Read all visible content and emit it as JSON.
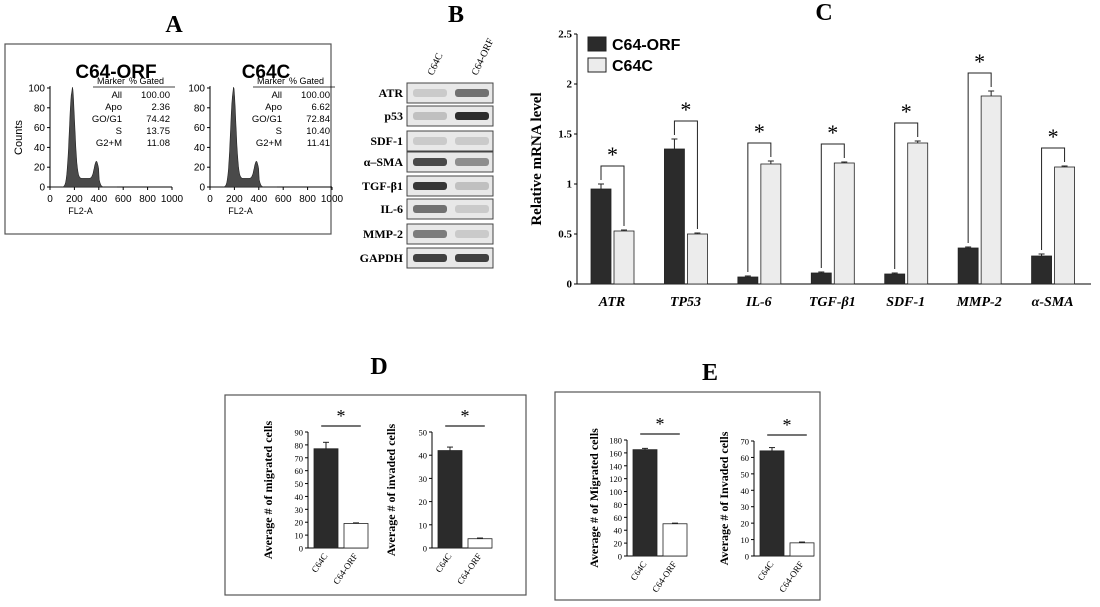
{
  "panels": {
    "A": "A",
    "B": "B",
    "C": "C",
    "D": "D",
    "E": "E"
  },
  "colors": {
    "dark": "#2b2b2b",
    "light": "#ececec",
    "white": "#ffffff",
    "line": "#222222",
    "band": "#3a3a3a"
  },
  "flow": [
    {
      "title": "C64-ORF",
      "ylabel": "Counts",
      "xlabel": "FL2-A",
      "yticks": [
        "0",
        "20",
        "40",
        "60",
        "80",
        "100"
      ],
      "xticks": [
        "0",
        "200",
        "400",
        "600",
        "800",
        "1000"
      ],
      "legend_header": [
        "Marker",
        "% Gated"
      ],
      "rows": [
        [
          "All",
          "100.00"
        ],
        [
          "Apo",
          "2.36"
        ],
        [
          "GO/G1",
          "74.42"
        ],
        [
          "S",
          "13.75"
        ],
        [
          "G2+M",
          "11.08"
        ]
      ]
    },
    {
      "title": "C64C",
      "ylabel": "",
      "xlabel": "FL2-A",
      "yticks": [
        "0",
        "20",
        "40",
        "60",
        "80",
        "100"
      ],
      "xticks": [
        "0",
        "200",
        "400",
        "600",
        "800",
        "1000"
      ],
      "legend_header": [
        "Marker",
        "% Gated"
      ],
      "rows": [
        [
          "All",
          "100.00"
        ],
        [
          "Apo",
          "6.62"
        ],
        [
          "GO/G1",
          "72.84"
        ],
        [
          "S",
          "10.40"
        ],
        [
          "G2+M",
          "11.41"
        ]
      ]
    }
  ],
  "western": {
    "lanes": [
      "C64C",
      "C64-ORF"
    ],
    "proteins": [
      "ATR",
      "p53",
      "SDF-1",
      "α–SMA",
      "TGF-β1",
      "IL-6",
      "MMP-2",
      "GAPDH"
    ],
    "intensity": [
      [
        0.15,
        0.6
      ],
      [
        0.2,
        0.95
      ],
      [
        0.15,
        0.15
      ],
      [
        0.8,
        0.45
      ],
      [
        0.9,
        0.2
      ],
      [
        0.6,
        0.15
      ],
      [
        0.55,
        0.15
      ],
      [
        0.85,
        0.85
      ]
    ]
  },
  "chart_data": [
    {
      "type": "bar",
      "panel": "C",
      "title": "",
      "xlabel": "",
      "ylabel": "Relative mRNA level",
      "categories": [
        "ATR",
        "TP53",
        "IL-6",
        "TGF-β1",
        "SDF-1",
        "MMP-2",
        "α-SMA"
      ],
      "series": [
        {
          "name": "C64-ORF",
          "values": [
            0.95,
            1.35,
            0.07,
            0.11,
            0.1,
            0.36,
            0.28
          ],
          "errors": [
            0.05,
            0.1,
            0.01,
            0.01,
            0.01,
            0.01,
            0.02
          ]
        },
        {
          "name": "C64C",
          "values": [
            0.53,
            0.5,
            1.2,
            1.21,
            1.41,
            1.88,
            1.17
          ],
          "errors": [
            0.01,
            0.01,
            0.03,
            0.01,
            0.02,
            0.05,
            0.01
          ]
        }
      ],
      "ylim": [
        0,
        2.5
      ],
      "yticks": [
        "0",
        "0.5",
        "1",
        "1.5",
        "2",
        "2.5"
      ],
      "significance": "*",
      "legend": "top-left"
    },
    {
      "type": "bar",
      "panel": "D",
      "ylabel": "Average # of migrated cells",
      "categories": [
        "C64C",
        "C64-ORF"
      ],
      "values": [
        77,
        19
      ],
      "errors": [
        5,
        0.5
      ],
      "ylim": [
        0,
        90
      ],
      "yticks": [
        "0",
        "10",
        "20",
        "30",
        "40",
        "50",
        "60",
        "70",
        "80",
        "90"
      ],
      "significance": "*"
    },
    {
      "type": "bar",
      "panel": "D",
      "ylabel": "Average # of invaded cells",
      "categories": [
        "C64C",
        "C64-ORF"
      ],
      "values": [
        42,
        4
      ],
      "errors": [
        1.5,
        0.3
      ],
      "ylim": [
        0,
        50
      ],
      "yticks": [
        "0",
        "10",
        "20",
        "30",
        "40",
        "50"
      ],
      "significance": "*"
    },
    {
      "type": "bar",
      "panel": "E",
      "ylabel": "Average # of Migrated cells",
      "categories": [
        "C64C",
        "C64-ORF"
      ],
      "values": [
        165,
        50
      ],
      "errors": [
        2,
        1
      ],
      "ylim": [
        0,
        180
      ],
      "yticks": [
        "0",
        "20",
        "40",
        "60",
        "80",
        "100",
        "120",
        "140",
        "160",
        "180"
      ],
      "significance": "*"
    },
    {
      "type": "bar",
      "panel": "E",
      "ylabel": "Average # of Invaded cells",
      "categories": [
        "C64C",
        "C64-ORF"
      ],
      "values": [
        64,
        8
      ],
      "errors": [
        2,
        0.5
      ],
      "ylim": [
        0,
        70
      ],
      "yticks": [
        "0",
        "10",
        "20",
        "30",
        "40",
        "50",
        "60",
        "70"
      ],
      "significance": "*"
    }
  ]
}
